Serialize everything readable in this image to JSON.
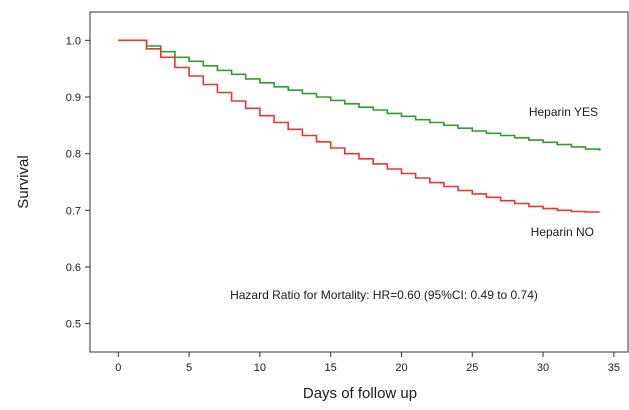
{
  "chart_data": {
    "type": "line",
    "title": "",
    "xlabel": "Days of follow up",
    "ylabel": "Survival",
    "xlim": [
      -2,
      36
    ],
    "ylim": [
      0.45,
      1.05
    ],
    "x_ticks": [
      0,
      5,
      10,
      15,
      20,
      25,
      30,
      35
    ],
    "y_ticks": [
      0.5,
      0.6,
      0.7,
      0.8,
      0.9,
      1.0
    ],
    "x_tick_labels": [
      "0",
      "5",
      "10",
      "15",
      "20",
      "25",
      "30",
      "35"
    ],
    "y_tick_labels": [
      "0.5",
      "0.6",
      "0.7",
      "0.8",
      "0.9",
      "1.0"
    ],
    "grid": false,
    "legend": "none",
    "step": true,
    "series": [
      {
        "name": "Heparin YES",
        "color": "#2ca02c",
        "x": [
          0,
          2,
          3,
          4,
          5,
          6,
          7,
          8,
          9,
          10,
          11,
          12,
          13,
          14,
          15,
          16,
          17,
          18,
          19,
          20,
          21,
          22,
          23,
          24,
          25,
          26,
          27,
          28,
          29,
          30,
          31,
          32,
          33,
          34
        ],
        "y": [
          1.0,
          0.99,
          0.98,
          0.97,
          0.963,
          0.955,
          0.947,
          0.94,
          0.932,
          0.925,
          0.918,
          0.912,
          0.906,
          0.9,
          0.894,
          0.888,
          0.882,
          0.877,
          0.871,
          0.866,
          0.86,
          0.855,
          0.85,
          0.845,
          0.84,
          0.836,
          0.832,
          0.828,
          0.824,
          0.82,
          0.816,
          0.812,
          0.808,
          0.805
        ]
      },
      {
        "name": "Heparin NO",
        "color": "#e8382f",
        "x": [
          0,
          2,
          3,
          4,
          5,
          6,
          7,
          8,
          9,
          10,
          11,
          12,
          13,
          14,
          15,
          16,
          17,
          18,
          19,
          20,
          21,
          22,
          23,
          24,
          25,
          26,
          27,
          28,
          29,
          30,
          31,
          32,
          33,
          34
        ],
        "y": [
          1.0,
          0.985,
          0.97,
          0.952,
          0.937,
          0.922,
          0.908,
          0.893,
          0.88,
          0.867,
          0.855,
          0.843,
          0.832,
          0.821,
          0.81,
          0.8,
          0.791,
          0.782,
          0.773,
          0.765,
          0.757,
          0.749,
          0.742,
          0.735,
          0.729,
          0.723,
          0.717,
          0.712,
          0.707,
          0.703,
          0.7,
          0.698,
          0.697,
          0.697
        ]
      }
    ],
    "series_labels": [
      "Heparin YES",
      "Heparin NO"
    ],
    "annotation": "Hazard Ratio for Mortality: HR=0.60 (95%CI: 0.49 to 0.74)"
  }
}
